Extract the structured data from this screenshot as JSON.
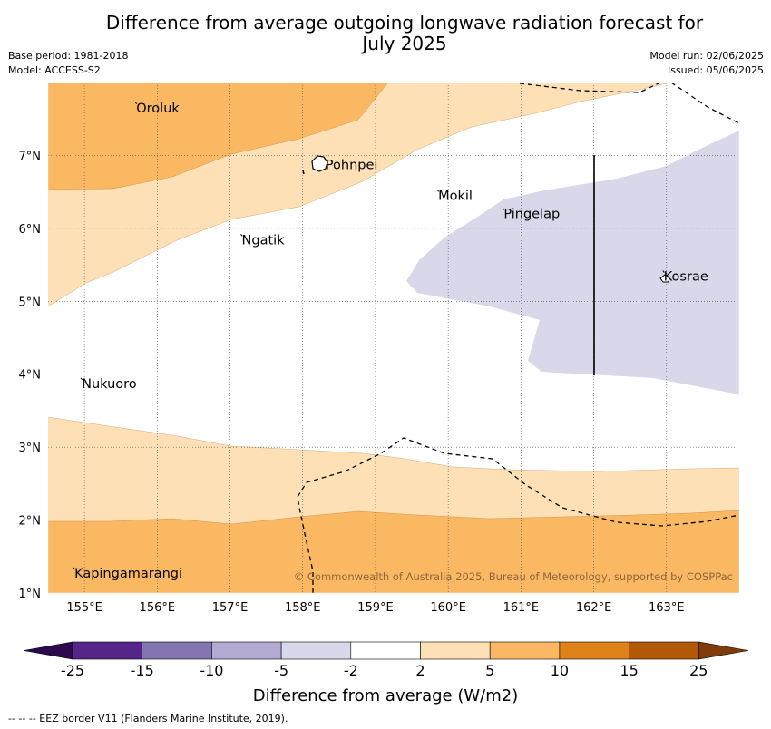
{
  "title_line1": "Difference from average outgoing longwave radiation forecast for",
  "title_line2": "July 2025",
  "base_period": "Base period: 1981-2018",
  "model": "Model: ACCESS-S2",
  "model_run": "Model run: 02/06/2025",
  "issued": "Issued: 05/06/2025",
  "copyright": "© Commonwealth of Australia 2025, Bureau of Meteorology, supported by COSPPac",
  "map": {
    "lon_range": [
      154.5,
      164.0
    ],
    "lat_range": [
      1.0,
      8.0
    ],
    "lon_ticks": [
      "155°E",
      "156°E",
      "157°E",
      "158°E",
      "159°E",
      "160°E",
      "161°E",
      "162°E",
      "163°E"
    ],
    "lat_ticks": [
      "1°N",
      "2°N",
      "3°N",
      "4°N",
      "5°N",
      "6°N",
      "7°N"
    ],
    "grid": true,
    "places": [
      {
        "name": "Oroluk",
        "lon": 155.7,
        "lat": 7.63
      },
      {
        "name": "Pohnpei",
        "lon": 158.3,
        "lat": 6.85
      },
      {
        "name": "Mokil",
        "lon": 159.85,
        "lat": 6.43
      },
      {
        "name": "Pingelap",
        "lon": 160.75,
        "lat": 6.18
      },
      {
        "name": "Ngatik",
        "lon": 157.15,
        "lat": 5.82
      },
      {
        "name": "Kosrae",
        "lon": 162.95,
        "lat": 5.32
      },
      {
        "name": "Nukuoro",
        "lon": 154.95,
        "lat": 3.85
      },
      {
        "name": "Kapingamarangi",
        "lon": 154.85,
        "lat": 1.25
      }
    ]
  },
  "colorbar": {
    "labels": [
      "-25",
      "-15",
      "-10",
      "-5",
      "-2",
      "2",
      "5",
      "10",
      "15",
      "25"
    ],
    "colors": [
      "#562589",
      "#8474af",
      "#b2aad2",
      "#d8d8ea",
      "#ffffff",
      "#fde0b6",
      "#fbb863",
      "#e0821a",
      "#b35807"
    ],
    "under_color": "#2c0a4d",
    "over_color": "#7f3b08",
    "label": "Difference from average (W/m2)"
  },
  "footnote": "--  --  -- EEZ border V11 (Flanders Marine Institute, 2019)."
}
